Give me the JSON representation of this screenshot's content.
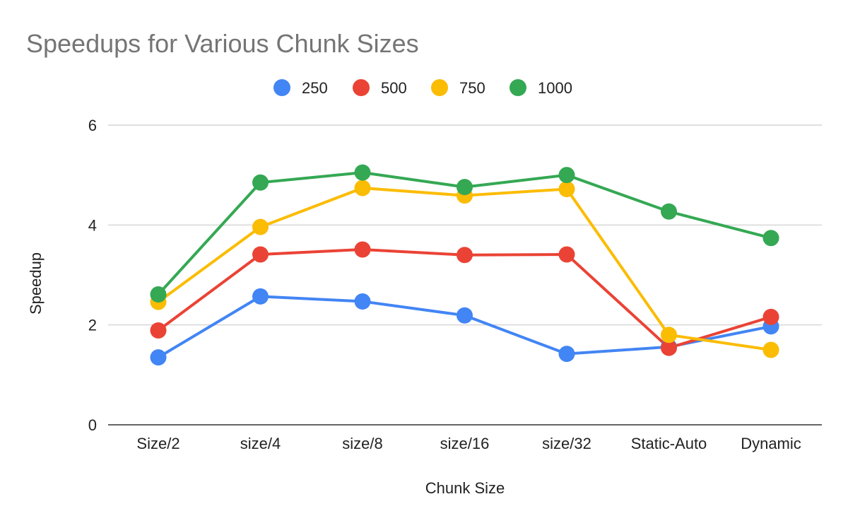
{
  "chart_data": {
    "type": "line",
    "title": "Speedups for Various Chunk Sizes",
    "xlabel": "Chunk Size",
    "ylabel": "Speedup",
    "categories": [
      "Size/2",
      "size/4",
      "size/8",
      "size/16",
      "size/32",
      "Static-Auto",
      "Dynamic"
    ],
    "ylim": [
      0,
      6
    ],
    "yticks": [
      0,
      2,
      4,
      6
    ],
    "grid": true,
    "legend_position": "top",
    "series": [
      {
        "name": "250",
        "color": "#4285F4",
        "values": [
          1.35,
          2.57,
          2.47,
          2.19,
          1.42,
          1.56,
          1.97
        ]
      },
      {
        "name": "500",
        "color": "#EA4335",
        "values": [
          1.89,
          3.41,
          3.51,
          3.4,
          3.41,
          1.54,
          2.16
        ]
      },
      {
        "name": "750",
        "color": "#FBBC04",
        "values": [
          2.46,
          3.96,
          4.74,
          4.59,
          4.72,
          1.8,
          1.5
        ]
      },
      {
        "name": "1000",
        "color": "#34A853",
        "values": [
          2.61,
          4.85,
          5.05,
          4.76,
          5.0,
          4.27,
          3.74
        ]
      }
    ]
  }
}
